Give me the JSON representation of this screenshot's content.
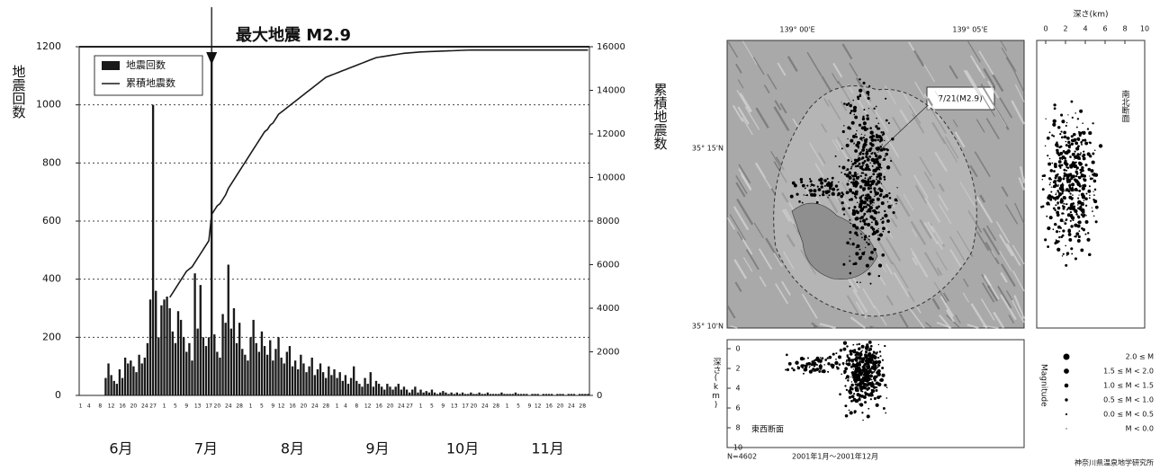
{
  "chart_data": {
    "type": "bar",
    "annotation": "最大地震 M2.9",
    "months": [
      "6月",
      "7月",
      "8月",
      "9月",
      "10月",
      "11月"
    ],
    "categories": [
      "1",
      null,
      null,
      "4",
      null,
      null,
      null,
      "8",
      null,
      null,
      null,
      "12",
      null,
      null,
      null,
      "16",
      null,
      null,
      null,
      "20",
      null,
      null,
      null,
      "24",
      null,
      null,
      "27",
      null,
      null,
      null,
      "1",
      null,
      null,
      null,
      "5",
      null,
      null,
      null,
      "9",
      null,
      null,
      null,
      "13",
      null,
      null,
      null,
      "17",
      null,
      null,
      "20",
      null,
      null,
      null,
      "24",
      null,
      null,
      null,
      "28",
      null,
      null,
      null,
      "1",
      null,
      null,
      null,
      "5",
      null,
      null,
      null,
      "9",
      null,
      null,
      "12",
      null,
      null,
      null,
      "16",
      null,
      null,
      null,
      "20",
      null,
      null,
      null,
      "24",
      null,
      null,
      null,
      "28",
      null,
      null,
      null,
      "1",
      null,
      null,
      "4",
      null,
      null,
      null,
      "8",
      null,
      null,
      null,
      "12",
      null,
      null,
      null,
      "16",
      null,
      null,
      null,
      "20",
      null,
      null,
      null,
      "24",
      null,
      null,
      "27",
      null,
      null,
      null,
      "1",
      null,
      null,
      null,
      "5",
      null,
      null,
      null,
      "9",
      null,
      null,
      null,
      "13",
      null,
      null,
      null,
      "17",
      null,
      null,
      "20",
      null,
      null,
      null,
      "24",
      null,
      null,
      null,
      "28",
      null,
      null,
      null,
      "1",
      null,
      null,
      null,
      "5",
      null,
      null,
      null,
      "9",
      null,
      null,
      "12",
      null,
      null,
      null,
      "16",
      null,
      null,
      null,
      "20",
      null,
      null,
      null,
      "24",
      null,
      null,
      null,
      "28",
      null,
      null
    ],
    "series": [
      {
        "name": "地震回数",
        "color": "#1a1a1a",
        "type": "bar",
        "values": [
          0,
          0,
          0,
          0,
          0,
          0,
          0,
          0,
          0,
          60,
          110,
          70,
          50,
          40,
          90,
          60,
          130,
          110,
          120,
          100,
          80,
          140,
          110,
          130,
          180,
          330,
          1000,
          360,
          200,
          310,
          330,
          340,
          300,
          220,
          180,
          290,
          260,
          200,
          150,
          180,
          120,
          420,
          230,
          380,
          200,
          170,
          200,
          1160,
          210,
          150,
          130,
          280,
          250,
          450,
          230,
          300,
          180,
          250,
          160,
          140,
          120,
          200,
          260,
          180,
          150,
          220,
          170,
          140,
          190,
          120,
          160,
          200,
          130,
          110,
          150,
          170,
          100,
          120,
          90,
          140,
          110,
          80,
          100,
          130,
          70,
          90,
          110,
          80,
          60,
          100,
          70,
          90,
          60,
          80,
          50,
          70,
          40,
          60,
          100,
          50,
          40,
          30,
          60,
          40,
          80,
          30,
          50,
          40,
          30,
          20,
          40,
          30,
          20,
          30,
          40,
          20,
          30,
          20,
          10,
          20,
          30,
          10,
          20,
          10,
          15,
          10,
          20,
          10,
          5,
          10,
          15,
          10,
          5,
          10,
          5,
          10,
          5,
          10,
          5,
          5,
          10,
          5,
          5,
          10,
          5,
          5,
          10,
          5,
          5,
          5,
          5,
          10,
          5,
          5,
          5,
          5,
          10,
          5,
          5,
          5,
          5,
          0,
          5,
          5,
          5,
          0,
          5,
          5,
          5,
          5,
          0,
          5,
          5,
          5,
          0,
          5,
          5,
          5,
          0,
          5,
          5,
          5,
          5
        ]
      },
      {
        "name": "累積地震数",
        "color": "#1a1a1a",
        "type": "line",
        "axis": "y2",
        "values": [
          null,
          null,
          null,
          null,
          null,
          null,
          null,
          null,
          null,
          null,
          null,
          null,
          null,
          null,
          null,
          null,
          null,
          null,
          null,
          null,
          null,
          null,
          null,
          null,
          null,
          null,
          null,
          null,
          null,
          null,
          null,
          null,
          4500,
          4700,
          4900,
          5100,
          5300,
          5500,
          5700,
          5800,
          5900,
          6100,
          6300,
          6500,
          6700,
          6900,
          7100,
          8300,
          8500,
          8700,
          8800,
          9000,
          9200,
          9500,
          9700,
          9900,
          10100,
          10300,
          10500,
          10700,
          10900,
          11100,
          11300,
          11500,
          11700,
          11900,
          12100,
          12200,
          12400,
          12500,
          12700,
          12900,
          13000,
          13100,
          13200,
          13300,
          13400,
          13500,
          13600,
          13700,
          13800,
          13900,
          14000,
          14100,
          14200,
          14300,
          14400,
          14500,
          14600,
          14650,
          14700,
          14750,
          14800,
          14850,
          14900,
          14950,
          15000,
          15050,
          15100,
          15150,
          15200,
          15250,
          15300,
          15350,
          15400,
          15450,
          15500,
          15520,
          15540,
          15560,
          15580,
          15600,
          15620,
          15640,
          15660,
          15680,
          15700,
          15710,
          15720,
          15730,
          15740,
          15750,
          15760,
          15765,
          15770,
          15775,
          15780,
          15785,
          15790,
          15795,
          15800,
          15805,
          15810,
          15815,
          15820,
          15825,
          15830,
          15835,
          15840,
          15845,
          15850,
          15850,
          15850,
          15850,
          15850,
          15850,
          15850,
          15850,
          15850,
          15850,
          15850,
          15850,
          15850,
          15850,
          15850,
          15850,
          15850,
          15850,
          15850,
          15850,
          15850,
          15850,
          15850,
          15850,
          15850,
          15850,
          15850,
          15850,
          15850,
          15850,
          15850,
          15850,
          15850,
          15850,
          15850,
          15850,
          15850,
          15850,
          15850,
          15850,
          15850,
          15850,
          15850
        ]
      }
    ],
    "ylabel": "地震回数",
    "y2label": "累積地震数",
    "ylim": [
      0,
      1200
    ],
    "yticks": [
      0,
      200,
      400,
      600,
      800,
      1000,
      1200
    ],
    "y2lim": [
      0,
      16000
    ],
    "y2ticks": [
      0,
      2000,
      4000,
      6000,
      8000,
      10000,
      12000,
      14000,
      16000
    ],
    "grid": true,
    "legend": "upper left"
  },
  "map": {
    "lon_labels": [
      "139° 00'E",
      "139° 05'E"
    ],
    "lat_labels": [
      "35° 15'N",
      "35° 10'N"
    ],
    "callout": "7/21(M2.9)",
    "ns_section": {
      "title": "深さ(km)",
      "ticks": [
        "0",
        "2",
        "4",
        "6",
        "8",
        "10"
      ],
      "label": "南北断面"
    },
    "ew_section": {
      "title": "深さ(km)",
      "ticks": [
        "0",
        "2",
        "4",
        "6",
        "8",
        "10"
      ],
      "label": "東西断面",
      "side_title": "Magnitude"
    },
    "legend": [
      "2.0 ≤ M",
      "1.5 ≤ M < 2.0",
      "1.0 ≤ M < 1.5",
      "0.5 ≤ M < 1.0",
      "0.0 ≤ M < 0.5",
      "M < 0.0"
    ],
    "footer": {
      "count": "N=4602",
      "period": "2001年1月～2001年12月",
      "credit": "神奈川県温泉地学研究所"
    }
  }
}
